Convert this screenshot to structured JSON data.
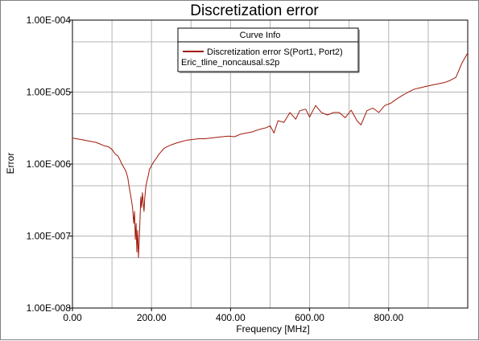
{
  "chart_data": {
    "type": "line",
    "title": "Discretization error",
    "xlabel": "Frequency [MHz]",
    "ylabel": "Error",
    "xlim": [
      0,
      1000
    ],
    "ylim": [
      1e-08,
      0.0001
    ],
    "y_scale": "log",
    "grid": true,
    "x_ticks": [
      {
        "value": 0,
        "label": "0.00"
      },
      {
        "value": 200,
        "label": "200.00"
      },
      {
        "value": 400,
        "label": "400.00"
      },
      {
        "value": 600,
        "label": "600.00"
      },
      {
        "value": 800,
        "label": "800.00"
      }
    ],
    "y_ticks": [
      {
        "value": 1e-08,
        "label": "1.00E-008"
      },
      {
        "value": 1e-07,
        "label": "1.00E-007"
      },
      {
        "value": 1e-06,
        "label": "1.00E-006"
      },
      {
        "value": 1e-05,
        "label": "1.00E-005"
      },
      {
        "value": 0.0001,
        "label": "1.00E-004"
      }
    ],
    "legend": {
      "title": "Curve Info",
      "placement": "top-center",
      "entries": [
        {
          "name": "Discretization error S(Port1, Port2)",
          "subtitle": "Eric_tline_noncausal.s2p",
          "color": "#a01808"
        }
      ]
    },
    "series": [
      {
        "name": "Discretization error S(Port1, Port2)",
        "color": "#a01808",
        "x": [
          0,
          10,
          20,
          30,
          40,
          50,
          60,
          70,
          80,
          90,
          100,
          105,
          110,
          115,
          120,
          125,
          130,
          135,
          140,
          143,
          146,
          149,
          152,
          155,
          157,
          159,
          161,
          163,
          165,
          167,
          169,
          171,
          173,
          175,
          177,
          179,
          181,
          183,
          186,
          189,
          192,
          195,
          198,
          202,
          207,
          212,
          218,
          225,
          232,
          240,
          250,
          262,
          275,
          290,
          305,
          320,
          335,
          350,
          365,
          380,
          395,
          410,
          425,
          440,
          455,
          470,
          480,
          490,
          500,
          510,
          520,
          535,
          550,
          565,
          575,
          590,
          600,
          615,
          630,
          645,
          660,
          675,
          690,
          705,
          720,
          730,
          745,
          760,
          775,
          790,
          805,
          820,
          835,
          850,
          865,
          880,
          895,
          910,
          925,
          940,
          955,
          970,
          985,
          1000
        ],
        "y": [
          2.3e-06,
          2.25e-06,
          2.2e-06,
          2.15e-06,
          2.1e-06,
          2.05e-06,
          2e-06,
          1.9e-06,
          1.8e-06,
          1.75e-06,
          1.6e-06,
          1.45e-06,
          1.35e-06,
          1.3e-06,
          1.15e-06,
          1e-06,
          9e-07,
          8e-07,
          6.5e-07,
          5e-07,
          4e-07,
          3.2e-07,
          2.5e-07,
          1.5e-07,
          2.2e-07,
          9e-08,
          1.5e-07,
          6e-08,
          1.2e-07,
          5e-08,
          9e-08,
          1.8e-07,
          3.5e-07,
          2.5e-07,
          4e-07,
          3e-07,
          2.2e-07,
          3.5e-07,
          5e-07,
          6e-07,
          7e-07,
          8.5e-07,
          9e-07,
          1e-06,
          1.1e-06,
          1.2e-06,
          1.35e-06,
          1.5e-06,
          1.65e-06,
          1.75e-06,
          1.85e-06,
          1.95e-06,
          2.05e-06,
          2.15e-06,
          2.2e-06,
          2.25e-06,
          2.25e-06,
          2.3e-06,
          2.35e-06,
          2.4e-06,
          2.45e-06,
          2.4e-06,
          2.6e-06,
          2.7e-06,
          2.8e-06,
          3e-06,
          3.1e-06,
          3.2e-06,
          3.4e-06,
          2.7e-06,
          4e-06,
          3.8e-06,
          5.2e-06,
          4.2e-06,
          5.5e-06,
          5.8e-06,
          4.5e-06,
          6.5e-06,
          5.2e-06,
          4.8e-06,
          5.2e-06,
          5.2e-06,
          4.4e-06,
          5.6e-06,
          4e-06,
          3.5e-06,
          5.5e-06,
          6e-06,
          5.2e-06,
          6.5e-06,
          7e-06,
          8e-06,
          9e-06,
          1e-05,
          1.1e-05,
          1.15e-05,
          1.2e-05,
          1.25e-05,
          1.3e-05,
          1.35e-05,
          1.45e-05,
          1.6e-05,
          2.5e-05,
          3.5e-05
        ]
      }
    ]
  }
}
